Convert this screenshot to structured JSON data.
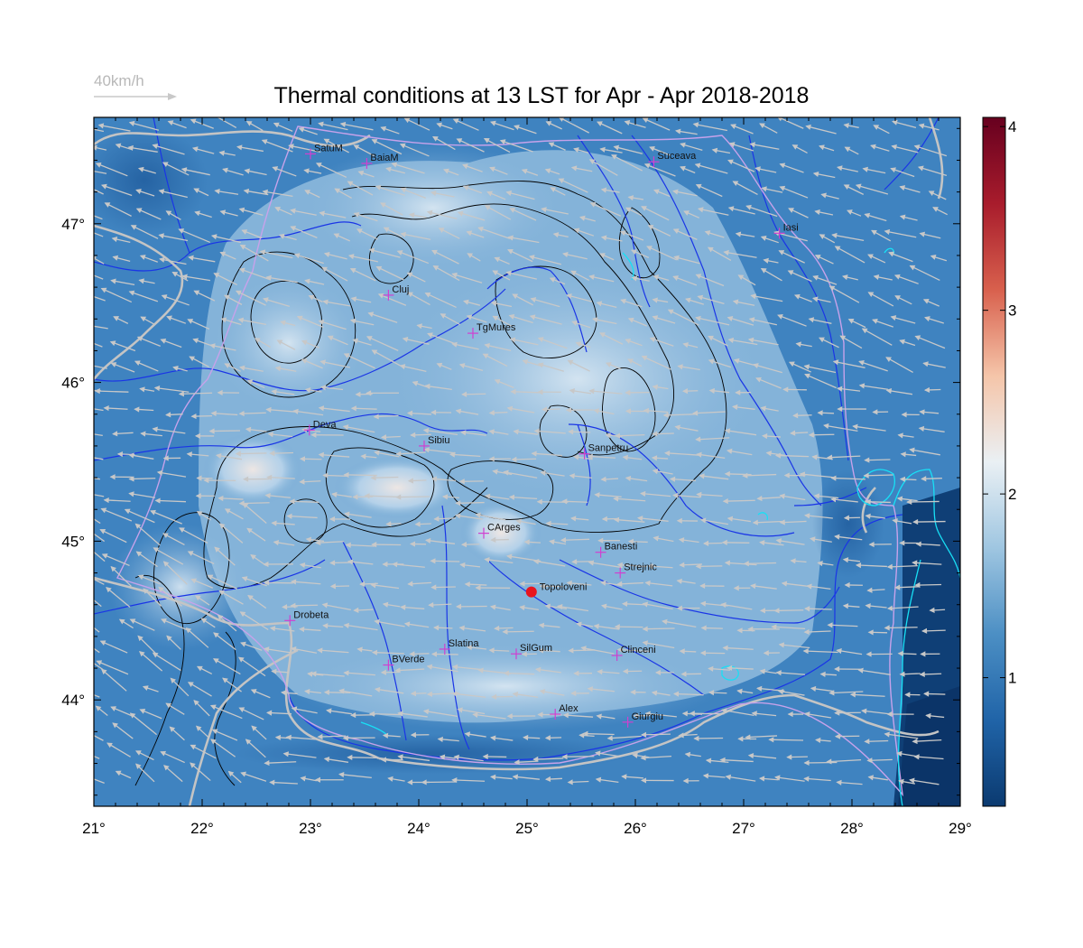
{
  "title": "Thermal conditions at 13 LST for Apr - Apr  2018-2018",
  "wind_legend": {
    "label": "40km/h",
    "color": "#b8b8b8"
  },
  "axes": {
    "lon_range": [
      21,
      29
    ],
    "lat_range": [
      43.33,
      47.67
    ],
    "lon_ticks": [
      21,
      22,
      23,
      24,
      25,
      26,
      27,
      28,
      29
    ],
    "lat_ticks": [
      44,
      45,
      46,
      47
    ],
    "lon_labels": [
      "21°",
      "22°",
      "23°",
      "24°",
      "25°",
      "26°",
      "27°",
      "28°",
      "29°"
    ],
    "lat_labels": [
      "44°",
      "45°",
      "46°",
      "47°"
    ]
  },
  "colorbar": {
    "range": [
      0.3,
      4.05
    ],
    "ticks": [
      1,
      2,
      3,
      4
    ],
    "labels": [
      "1",
      "2",
      "3",
      "4"
    ],
    "stops": [
      "#0b3a70",
      "#2064a8",
      "#4c8fc4",
      "#9fc6e1",
      "#eaf0f4",
      "#f5c5a9",
      "#d8604d",
      "#a81c2c",
      "#67001f"
    ]
  },
  "cities": [
    {
      "name": "SatuM",
      "lon": 23.0,
      "lat": 47.44
    },
    {
      "name": "BaiaM",
      "lon": 23.52,
      "lat": 47.38
    },
    {
      "name": "Suceava",
      "lon": 26.17,
      "lat": 47.39
    },
    {
      "name": "Iasi",
      "lon": 27.33,
      "lat": 46.94
    },
    {
      "name": "Cluj",
      "lon": 23.72,
      "lat": 46.55
    },
    {
      "name": "TgMures",
      "lon": 24.5,
      "lat": 46.31
    },
    {
      "name": "Deva",
      "lon": 22.99,
      "lat": 45.7
    },
    {
      "name": "Sibiu",
      "lon": 24.05,
      "lat": 45.6
    },
    {
      "name": "Sanpetru",
      "lon": 25.53,
      "lat": 45.55
    },
    {
      "name": "CArges",
      "lon": 24.6,
      "lat": 45.05
    },
    {
      "name": "Banesti",
      "lon": 25.68,
      "lat": 44.93
    },
    {
      "name": "Strejnic",
      "lon": 25.86,
      "lat": 44.8
    },
    {
      "name": "Drobeta",
      "lon": 22.81,
      "lat": 44.5
    },
    {
      "name": "Slatina",
      "lon": 24.24,
      "lat": 44.32
    },
    {
      "name": "SilGum",
      "lon": 24.9,
      "lat": 44.29
    },
    {
      "name": "BVerde",
      "lon": 23.72,
      "lat": 44.22
    },
    {
      "name": "Clinceni",
      "lon": 25.83,
      "lat": 44.28
    },
    {
      "name": "Alex",
      "lon": 25.26,
      "lat": 43.91
    },
    {
      "name": "Giurgiu",
      "lon": 25.93,
      "lat": 43.86
    }
  ],
  "highlight": {
    "name": "Topoloveni",
    "lon": 25.04,
    "lat": 44.68,
    "color": "#e8141e"
  },
  "colors": {
    "rivers": "#1a35e6",
    "borders": "#c0c0c0",
    "contours": "#000000",
    "lakes": "#00e5ff",
    "station_marker": "#d040d0",
    "wind_arrows": "#c8c8c8"
  }
}
